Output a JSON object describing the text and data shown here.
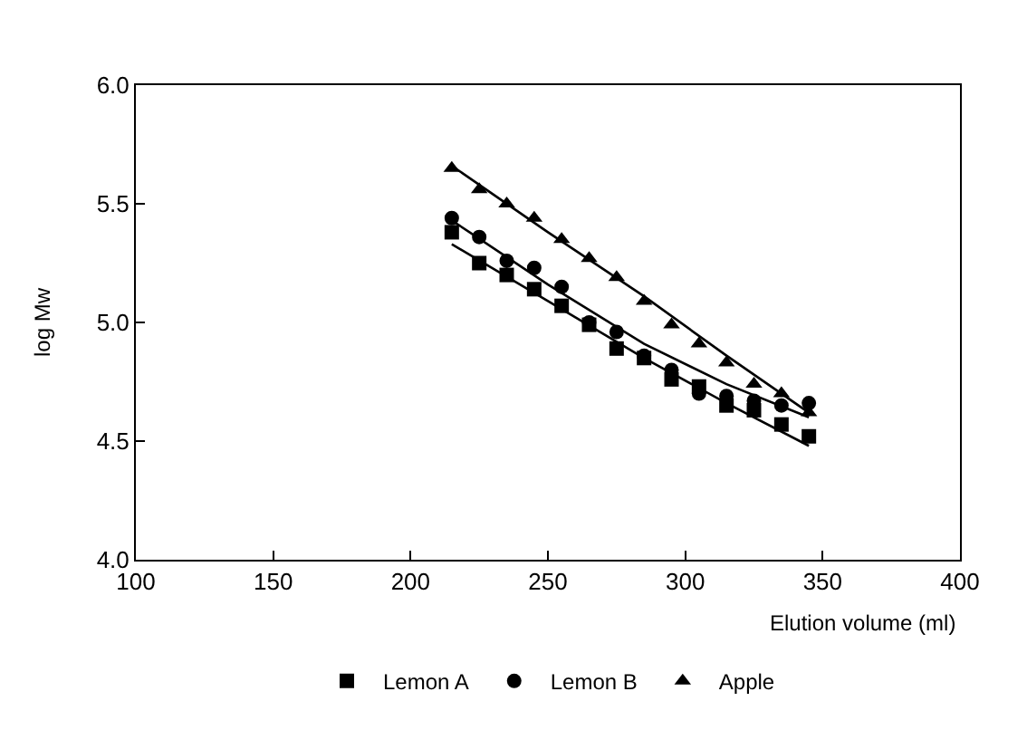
{
  "chart_data": {
    "type": "scatter",
    "xlabel": "Elution volume (ml)",
    "ylabel": "log Mw",
    "x": [
      215,
      225,
      235,
      245,
      255,
      265,
      275,
      285,
      295,
      305,
      315,
      325,
      335,
      345
    ],
    "series": [
      {
        "name": "Lemon A",
        "color": "#000000",
        "marker": "square",
        "values": [
          5.38,
          5.25,
          5.2,
          5.14,
          5.07,
          4.99,
          4.89,
          4.85,
          4.76,
          4.73,
          4.65,
          4.63,
          4.57,
          4.52
        ]
      },
      {
        "name": "Lemon B",
        "color": "#000000",
        "marker": "circle",
        "values": [
          5.44,
          5.36,
          5.26,
          5.23,
          5.15,
          5.0,
          4.96,
          4.86,
          4.8,
          4.7,
          4.69,
          4.67,
          4.65,
          4.66
        ]
      },
      {
        "name": "Apple",
        "color": "#000000",
        "marker": "triangle",
        "values": [
          5.65,
          5.56,
          5.5,
          5.44,
          5.35,
          5.27,
          5.19,
          5.09,
          4.99,
          4.91,
          4.83,
          4.74,
          4.7,
          4.62
        ]
      },
      {
        "type": "line",
        "color": "#000000",
        "x": [
          215,
          250,
          285,
          315,
          345
        ],
        "values": [
          5.33,
          5.09,
          4.85,
          4.66,
          4.48
        ]
      },
      {
        "type": "line",
        "color": "#000000",
        "x": [
          215,
          250,
          285,
          315,
          345
        ],
        "values": [
          5.43,
          5.16,
          4.91,
          4.74,
          4.6
        ]
      },
      {
        "type": "line",
        "color": "#000000",
        "x": [
          215,
          250,
          285,
          315,
          345
        ],
        "values": [
          5.66,
          5.38,
          5.11,
          4.86,
          4.62
        ]
      }
    ],
    "xlim": [
      100,
      400
    ],
    "xticks": [
      100,
      150,
      200,
      250,
      300,
      350,
      400
    ],
    "ylim": [
      4.0,
      6.0
    ],
    "yticks": [
      {
        "value": 4.0,
        "label": "4.0"
      },
      {
        "value": 4.5,
        "label": "4.5"
      },
      {
        "value": 5.0,
        "label": "5.0"
      },
      {
        "value": 5.5,
        "label": "5.5"
      },
      {
        "value": 6.0,
        "label": "6.0"
      }
    ],
    "legend": "bottom"
  }
}
